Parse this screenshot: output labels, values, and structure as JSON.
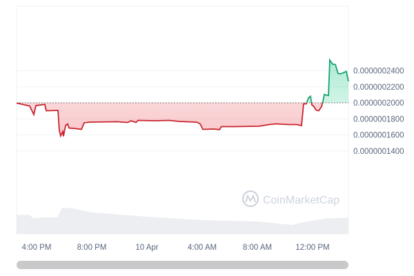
{
  "chart_data": {
    "type": "area",
    "title": "",
    "xlabel": "",
    "ylabel": "",
    "baseline": 2e-07,
    "ylim": [
      1.2e-07,
      2.6e-07
    ],
    "y_ticks": [
      "0.0000002400",
      "0.0000002200",
      "0.0000002000",
      "0.0000001800",
      "0.0000001600",
      "0.0000001400"
    ],
    "y_tick_values": [
      2.4e-07,
      2.2e-07,
      2e-07,
      1.8e-07,
      1.6e-07,
      1.4e-07
    ],
    "x_ticks": [
      "4:00 PM",
      "8:00 PM",
      "10 Apr",
      "4:00 AM",
      "8:00 AM",
      "12:00 PM"
    ],
    "x_tick_times": [
      "09 Apr 16:00",
      "09 Apr 20:00",
      "10 Apr 00:00",
      "10 Apr 04:00",
      "10 Apr 08:00",
      "10 Apr 12:00"
    ],
    "xlim": [
      "09 Apr 14:33",
      "10 Apr 14:36"
    ],
    "grid": true,
    "colors": {
      "up": "#16c784",
      "down": "#ea3943",
      "line_down": "#c8232c",
      "line_up": "#16a36e",
      "volume": "#eceef1",
      "grid": "#eff2f5"
    },
    "series": [
      {
        "points": [
          [
            "09 Apr 14:33",
            1.996e-07
          ],
          [
            "09 Apr 14:45",
            1.99e-07
          ],
          [
            "09 Apr 15:30",
            1.96e-07
          ],
          [
            "09 Apr 15:48",
            1.854e-07
          ],
          [
            "09 Apr 15:57",
            1.966e-07
          ],
          [
            "09 Apr 16:36",
            1.979e-07
          ],
          [
            "09 Apr 16:42",
            1.901e-07
          ],
          [
            "09 Apr 17:33",
            1.905e-07
          ],
          [
            "09 Apr 17:39",
            1.652e-07
          ],
          [
            "09 Apr 17:45",
            1.587e-07
          ],
          [
            "09 Apr 17:54",
            1.643e-07
          ],
          [
            "09 Apr 17:57",
            1.583e-07
          ],
          [
            "09 Apr 18:06",
            1.716e-07
          ],
          [
            "09 Apr 18:15",
            1.738e-07
          ],
          [
            "09 Apr 18:21",
            1.686e-07
          ],
          [
            "09 Apr 18:51",
            1.678e-07
          ],
          [
            "09 Apr 19:15",
            1.669e-07
          ],
          [
            "09 Apr 19:27",
            1.751e-07
          ],
          [
            "09 Apr 19:51",
            1.759e-07
          ],
          [
            "09 Apr 21:51",
            1.764e-07
          ],
          [
            "09 Apr 22:36",
            1.755e-07
          ],
          [
            "09 Apr 22:51",
            1.776e-07
          ],
          [
            "09 Apr 23:12",
            1.755e-07
          ],
          [
            "09 Apr 23:21",
            1.781e-07
          ],
          [
            "10 Apr 00:36",
            1.776e-07
          ],
          [
            "10 Apr 01:36",
            1.781e-07
          ],
          [
            "10 Apr 02:21",
            1.768e-07
          ],
          [
            "10 Apr 03:36",
            1.759e-07
          ],
          [
            "10 Apr 03:51",
            1.738e-07
          ],
          [
            "10 Apr 04:03",
            1.669e-07
          ],
          [
            "10 Apr 04:51",
            1.673e-07
          ],
          [
            "10 Apr 05:15",
            1.665e-07
          ],
          [
            "10 Apr 05:24",
            1.703e-07
          ],
          [
            "10 Apr 06:21",
            1.703e-07
          ],
          [
            "10 Apr 08:06",
            1.708e-07
          ],
          [
            "10 Apr 08:15",
            1.712e-07
          ],
          [
            "10 Apr 08:51",
            1.729e-07
          ],
          [
            "10 Apr 09:21",
            1.738e-07
          ],
          [
            "10 Apr 10:15",
            1.729e-07
          ],
          [
            "10 Apr 10:51",
            1.729e-07
          ],
          [
            "10 Apr 11:12",
            1.716e-07
          ],
          [
            "10 Apr 11:21",
            1.987e-07
          ],
          [
            "10 Apr 11:33",
            1.987e-07
          ],
          [
            "10 Apr 11:42",
            2.06e-07
          ],
          [
            "10 Apr 11:51",
            2.082e-07
          ],
          [
            "10 Apr 11:57",
            1.974e-07
          ],
          [
            "10 Apr 12:06",
            1.953e-07
          ],
          [
            "10 Apr 12:15",
            1.91e-07
          ],
          [
            "10 Apr 12:27",
            1.901e-07
          ],
          [
            "10 Apr 12:39",
            1.953e-07
          ],
          [
            "10 Apr 12:45",
            2.017e-07
          ],
          [
            "10 Apr 12:51",
            2.103e-07
          ],
          [
            "10 Apr 13:09",
            2.09e-07
          ],
          [
            "10 Apr 13:15",
            2.533e-07
          ],
          [
            "10 Apr 13:27",
            2.482e-07
          ],
          [
            "10 Apr 13:39",
            2.477e-07
          ],
          [
            "10 Apr 13:51",
            2.366e-07
          ],
          [
            "10 Apr 14:03",
            2.361e-07
          ],
          [
            "10 Apr 14:27",
            2.391e-07
          ],
          [
            "10 Apr 14:36",
            2.267e-07
          ]
        ]
      }
    ],
    "volume_relative": [
      [
        "09 Apr 14:33",
        0.55
      ],
      [
        "09 Apr 15:30",
        0.55
      ],
      [
        "09 Apr 15:45",
        0.45
      ],
      [
        "09 Apr 16:30",
        0.48
      ],
      [
        "09 Apr 17:30",
        0.48
      ],
      [
        "09 Apr 17:50",
        0.75
      ],
      [
        "09 Apr 18:30",
        0.75
      ],
      [
        "09 Apr 20:00",
        0.62
      ],
      [
        "10 Apr 00:00",
        0.5
      ],
      [
        "10 Apr 04:00",
        0.4
      ],
      [
        "10 Apr 08:00",
        0.36
      ],
      [
        "10 Apr 10:30",
        0.26
      ],
      [
        "10 Apr 11:30",
        0.35
      ],
      [
        "10 Apr 13:00",
        0.45
      ],
      [
        "10 Apr 14:36",
        0.47
      ]
    ]
  },
  "watermark": {
    "text": "CoinMarketCap"
  }
}
